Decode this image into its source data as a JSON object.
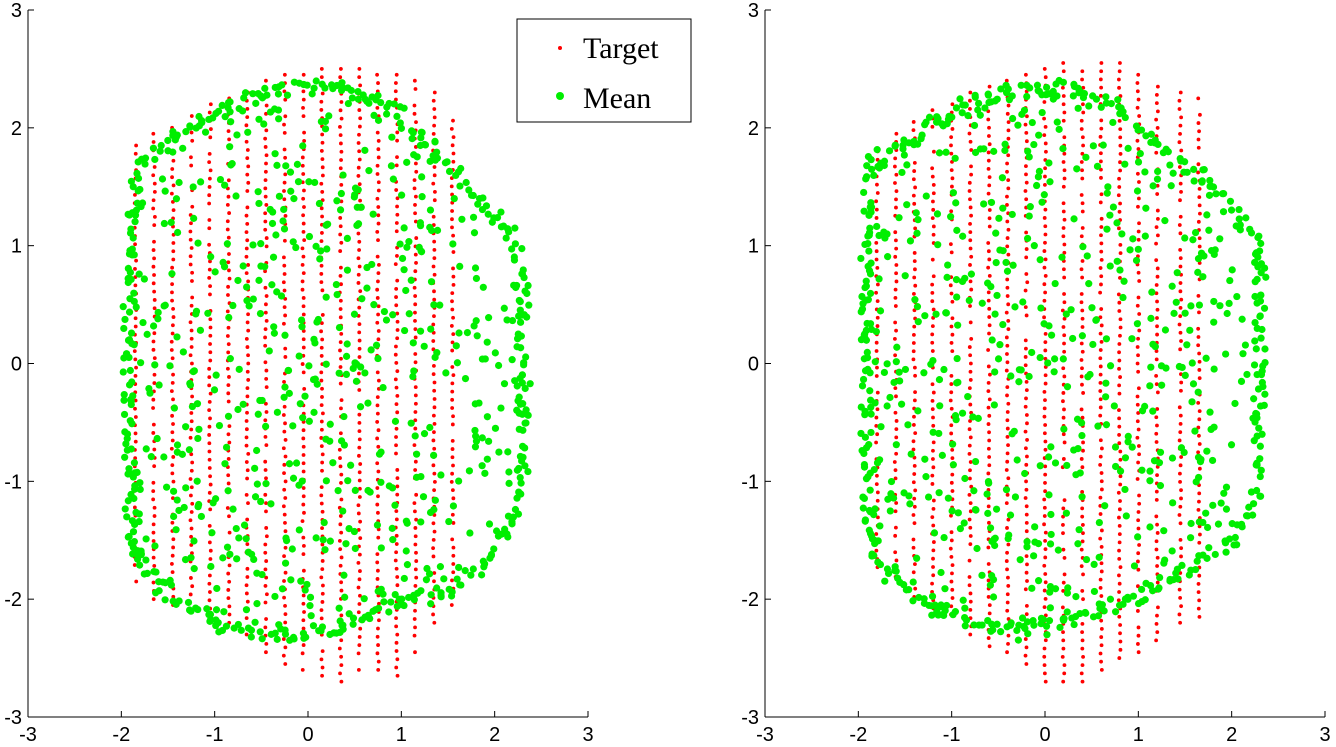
{
  "chart_data": [
    {
      "type": "scatter",
      "title": "",
      "xlabel": "",
      "ylabel": "",
      "xlim": [
        -3,
        3
      ],
      "ylim": [
        -3,
        3
      ],
      "xticks": [
        "-3",
        "-2",
        "-1",
        "0",
        "1",
        "2",
        "3"
      ],
      "yticks": [
        "-3",
        "-2",
        "-1",
        "0",
        "1",
        "2",
        "3"
      ],
      "grid": false,
      "legend": {
        "position": "top-right",
        "entries": [
          "Target",
          "Mean"
        ]
      },
      "series": [
        {
          "name": "Target",
          "color": "#ff0000",
          "marker": "small-dot",
          "columns": [
            {
              "x": -1.85,
              "ymin": -1.85,
              "ymax": 1.85
            },
            {
              "x": -1.65,
              "ymin": -2.0,
              "ymax": 1.95
            },
            {
              "x": -1.45,
              "ymin": -2.05,
              "ymax": 2.0
            },
            {
              "x": -1.25,
              "ymin": -2.1,
              "ymax": 2.1
            },
            {
              "x": -1.05,
              "ymin": -2.15,
              "ymax": 2.2
            },
            {
              "x": -0.85,
              "ymin": -2.2,
              "ymax": 2.25
            },
            {
              "x": -0.65,
              "ymin": -2.3,
              "ymax": 2.3
            },
            {
              "x": -0.45,
              "ymin": -2.45,
              "ymax": 2.4
            },
            {
              "x": -0.25,
              "ymin": -2.55,
              "ymax": 2.45
            },
            {
              "x": -0.05,
              "ymin": -2.6,
              "ymax": 2.45
            },
            {
              "x": 0.15,
              "ymin": -2.65,
              "ymax": 2.5
            },
            {
              "x": 0.35,
              "ymin": -2.7,
              "ymax": 2.5
            },
            {
              "x": 0.55,
              "ymin": -2.6,
              "ymax": 2.5
            },
            {
              "x": 0.75,
              "ymin": -2.6,
              "ymax": 2.45
            },
            {
              "x": 0.95,
              "ymin": -2.65,
              "ymax": 2.45
            },
            {
              "x": 1.15,
              "ymin": -2.45,
              "ymax": 2.4
            },
            {
              "x": 1.35,
              "ymin": -2.2,
              "ymax": 2.3
            },
            {
              "x": 1.55,
              "ymin": -2.05,
              "ymax": 2.2
            }
          ]
        },
        {
          "name": "Mean",
          "color": "#00ee00",
          "marker": "dot",
          "shape": [
            [
              -1.9,
              1.75
            ],
            [
              -1.55,
              1.95
            ],
            [
              -1.05,
              2.2
            ],
            [
              -0.45,
              2.4
            ],
            [
              0.25,
              2.45
            ],
            [
              0.95,
              2.25
            ],
            [
              1.35,
              1.95
            ],
            [
              1.75,
              1.6
            ],
            [
              2.1,
              1.3
            ],
            [
              2.35,
              1.0
            ],
            [
              2.4,
              0.0
            ],
            [
              2.35,
              -1.3
            ],
            [
              2.0,
              -1.75
            ],
            [
              1.55,
              -2.05
            ],
            [
              1.0,
              -2.1
            ],
            [
              0.4,
              -2.35
            ],
            [
              -0.3,
              -2.4
            ],
            [
              -0.9,
              -2.35
            ],
            [
              -1.55,
              -2.05
            ],
            [
              -1.95,
              -1.65
            ],
            [
              -2.0,
              -0.5
            ],
            [
              -2.0,
              0.9
            ]
          ]
        }
      ]
    },
    {
      "type": "scatter",
      "title": "",
      "xlabel": "",
      "ylabel": "",
      "xlim": [
        -3,
        3
      ],
      "ylim": [
        -3,
        3
      ],
      "xticks": [
        "-3",
        "-2",
        "-1",
        "0",
        "1",
        "2",
        "3"
      ],
      "yticks": [
        "-3",
        "-2",
        "-1",
        "0",
        "1",
        "2",
        "3"
      ],
      "grid": false,
      "series": [
        {
          "name": "Target",
          "color": "#ff0000",
          "marker": "small-dot",
          "columns": [
            {
              "x": -1.8,
              "ymin": -1.8,
              "ymax": 1.8
            },
            {
              "x": -1.6,
              "ymin": -1.95,
              "ymax": 1.95
            },
            {
              "x": -1.4,
              "ymin": -2.05,
              "ymax": 2.05
            },
            {
              "x": -1.2,
              "ymin": -2.15,
              "ymax": 2.15
            },
            {
              "x": -1.0,
              "ymin": -2.2,
              "ymax": 2.2
            },
            {
              "x": -0.8,
              "ymin": -2.3,
              "ymax": 2.3
            },
            {
              "x": -0.6,
              "ymin": -2.4,
              "ymax": 2.35
            },
            {
              "x": -0.4,
              "ymin": -2.45,
              "ymax": 2.4
            },
            {
              "x": -0.2,
              "ymin": -2.55,
              "ymax": 2.45
            },
            {
              "x": 0.0,
              "ymin": -2.7,
              "ymax": 2.5
            },
            {
              "x": 0.2,
              "ymin": -2.7,
              "ymax": 2.55
            },
            {
              "x": 0.4,
              "ymin": -2.7,
              "ymax": 2.55
            },
            {
              "x": 0.6,
              "ymin": -2.6,
              "ymax": 2.55
            },
            {
              "x": 0.8,
              "ymin": -2.5,
              "ymax": 2.55
            },
            {
              "x": 1.0,
              "ymin": -2.45,
              "ymax": 2.45
            },
            {
              "x": 1.2,
              "ymin": -2.35,
              "ymax": 2.35
            },
            {
              "x": 1.45,
              "ymin": -2.2,
              "ymax": 2.3
            },
            {
              "x": 1.65,
              "ymin": -2.15,
              "ymax": 2.25
            }
          ]
        },
        {
          "name": "Mean",
          "color": "#00ee00",
          "marker": "dot",
          "shape": [
            [
              -1.95,
              1.75
            ],
            [
              -1.55,
              1.95
            ],
            [
              -1.05,
              2.2
            ],
            [
              -0.45,
              2.4
            ],
            [
              0.2,
              2.45
            ],
            [
              0.8,
              2.25
            ],
            [
              1.2,
              1.95
            ],
            [
              1.7,
              1.65
            ],
            [
              2.05,
              1.4
            ],
            [
              2.35,
              1.1
            ],
            [
              2.4,
              0.0
            ],
            [
              2.35,
              -1.25
            ],
            [
              2.0,
              -1.6
            ],
            [
              1.55,
              -1.85
            ],
            [
              1.05,
              -2.05
            ],
            [
              0.4,
              -2.25
            ],
            [
              -0.3,
              -2.35
            ],
            [
              -0.9,
              -2.3
            ],
            [
              -1.5,
              -2.05
            ],
            [
              -1.95,
              -1.65
            ],
            [
              -2.0,
              -0.6
            ],
            [
              -2.0,
              0.9
            ]
          ]
        }
      ]
    }
  ]
}
